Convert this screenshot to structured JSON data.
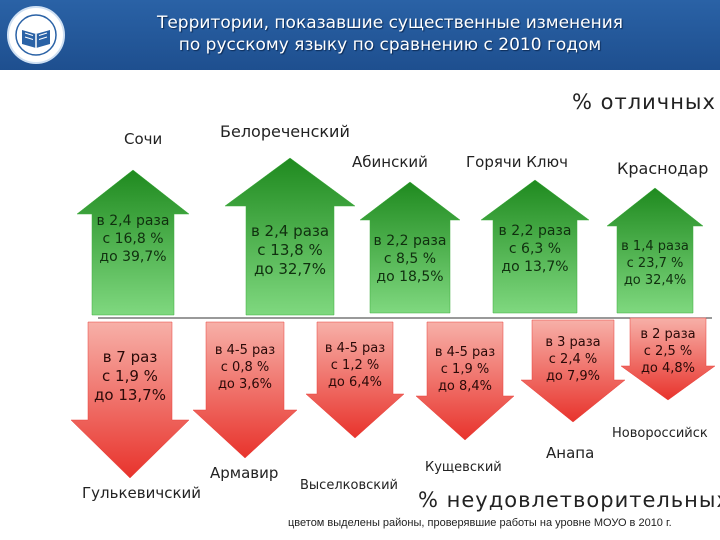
{
  "header": {
    "title_line1": "Территории, показавшие существенные изменения",
    "title_line2": "по русскому языку по сравнению с 2010 годом"
  },
  "labels": {
    "excellent": "% отличных",
    "unsatisfactory": "% неудовлетворительных",
    "footnote": "цветом выделены районы, проверявшие работы на уровне МОУО в 2010 г."
  },
  "up_arrows": [
    {
      "district": "Сочи",
      "l1": "в 2,4 раза",
      "l2": "с 16,8 %",
      "l3": "до 39,7%",
      "color": "#3dad3d"
    },
    {
      "district": "Белореченский",
      "l1": "в 2,4 раза",
      "l2": "с 13,8 %",
      "l3": "до 32,7%",
      "color": "#3dad3d"
    },
    {
      "district": "Абинский",
      "l1": "в 2,2 раза",
      "l2": "с 8,5 %",
      "l3": "до 18,5%",
      "color": "#3dad3d"
    },
    {
      "district": "Горячи Ключ",
      "l1": "в 2,2 раза",
      "l2": "с 6,3 %",
      "l3": "до 13,7%",
      "color": "#3dad3d"
    },
    {
      "district": "Краснодар",
      "l1": "в 1,4 раза",
      "l2": "с 23,7 %",
      "l3": "до 32,4%",
      "color": "#3dad3d"
    }
  ],
  "down_arrows": [
    {
      "district": "Гулькевичский",
      "l1": "в 7 раз",
      "l2": "с 1,9 %",
      "l3": "до 13,7%",
      "color": "#e8413c"
    },
    {
      "district": "Армавир",
      "l1": "в 4-5 раз",
      "l2": "с 0,8 %",
      "l3": "до 3,6%",
      "color": "#e8413c"
    },
    {
      "district": "Выселковский",
      "l1": "в 4-5 раз",
      "l2": "с 1,2 %",
      "l3": "до 6,4%",
      "color": "#e8413c"
    },
    {
      "district": "Кущевский",
      "l1": "в 4-5 раз",
      "l2": "с 1,9 %",
      "l3": "до 8,4%",
      "color": "#e8413c"
    },
    {
      "district": "Анапа",
      "l1": "в 3 раза",
      "l2": "с 2,4 %",
      "l3": "до 7,9%",
      "color": "#e8413c"
    },
    {
      "district": "Новороссийск",
      "l1": "в 2 раза",
      "l2": "с 2,5 %",
      "l3": "до 4,8%",
      "color": "#e8413c"
    }
  ]
}
